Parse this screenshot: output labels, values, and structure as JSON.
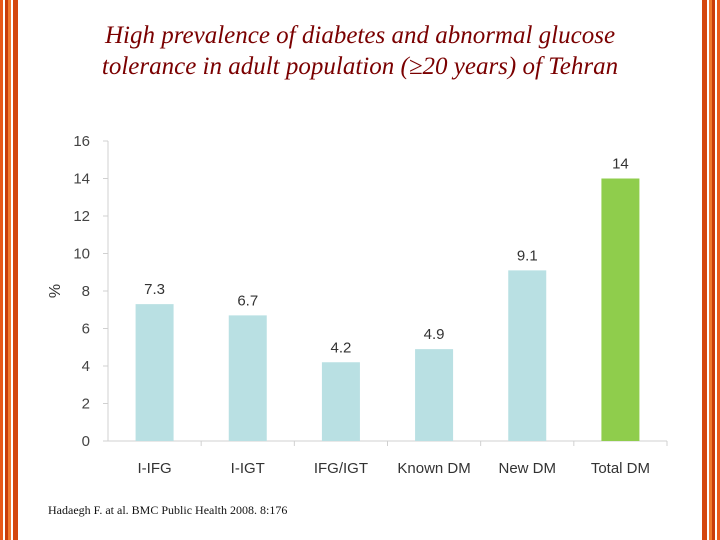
{
  "title": {
    "line1": "High prevalence of diabetes and abnormal glucose",
    "line2": "tolerance in adult population (≥20 years) of Tehran"
  },
  "source": "Hadaegh F. at al. BMC Public Health 2008. 8:176",
  "chart_data": {
    "type": "bar",
    "categories": [
      "I-IFG",
      "I-IGT",
      "IFG/IGT",
      "Known DM",
      "New DM",
      "Total DM"
    ],
    "values": [
      7.3,
      6.7,
      4.2,
      4.9,
      9.1,
      14
    ],
    "value_labels": [
      "7.3",
      "6.7",
      "4.2",
      "4.9",
      "9.1",
      "14"
    ],
    "ylabel": "%",
    "ylim": [
      0,
      16
    ],
    "yticks": [
      0,
      2,
      4,
      6,
      8,
      10,
      12,
      14,
      16
    ],
    "grid": false,
    "colors": [
      "#b9e0e3",
      "#b9e0e3",
      "#b9e0e3",
      "#b9e0e3",
      "#b9e0e3",
      "#8fcd4c"
    ]
  },
  "colors": {
    "title": "#7a0000",
    "frame": "#e8591a",
    "axis": "#d0d0d0"
  }
}
